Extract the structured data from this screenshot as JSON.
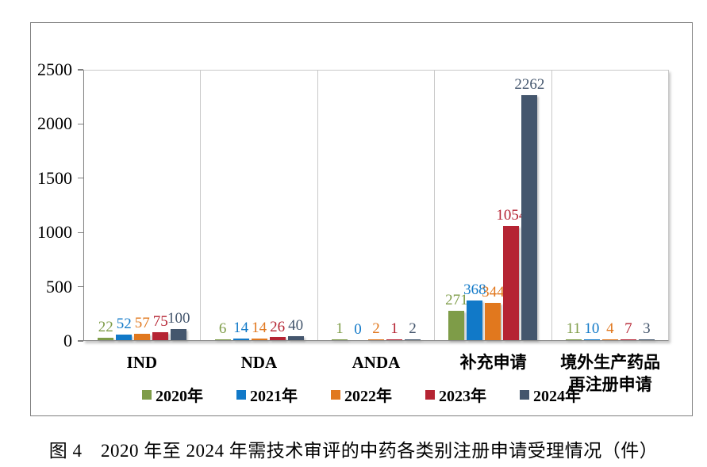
{
  "caption": "图 4　2020 年至 2024 年需技术审评的中药各类别注册申请受理情况（件）",
  "chart_data": {
    "type": "bar",
    "title": "2020 年至 2024 年需技术审评的中药各类别注册申请受理情况（件）",
    "categories": [
      "IND",
      "NDA",
      "ANDA",
      "补充申请",
      "境外生产药品\n再注册申请"
    ],
    "series": [
      {
        "name": "2020年",
        "color": "#7E9C48",
        "values": [
          22,
          6,
          1,
          271,
          11
        ]
      },
      {
        "name": "2021年",
        "color": "#1179C8",
        "values": [
          52,
          14,
          0,
          368,
          10
        ]
      },
      {
        "name": "2022年",
        "color": "#E1781E",
        "values": [
          57,
          14,
          2,
          344,
          4
        ]
      },
      {
        "name": "2023年",
        "color": "#B52433",
        "values": [
          75,
          26,
          1,
          1054,
          7
        ]
      },
      {
        "name": "2024年",
        "color": "#44566D",
        "values": [
          100,
          40,
          2,
          2262,
          3
        ]
      }
    ],
    "ylim": [
      0,
      2500
    ],
    "yticks": [
      0,
      500,
      1000,
      1500,
      2000,
      2500
    ],
    "xlabel": "",
    "ylabel": "",
    "grid": "vertical-category-dividers",
    "legend_position": "bottom",
    "data_labels": true
  }
}
